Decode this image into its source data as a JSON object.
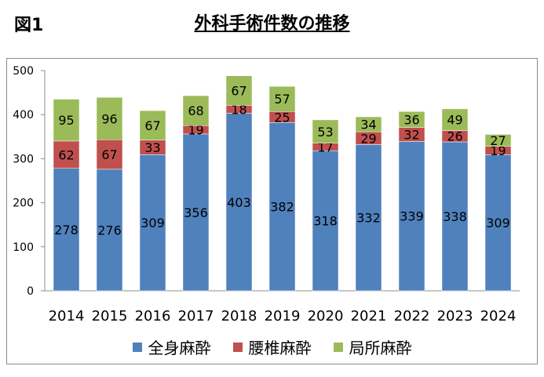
{
  "figure_label": "図1",
  "chart_data": {
    "type": "bar",
    "stacked": true,
    "title": "外科手術件数の推移",
    "xlabel": "",
    "ylabel": "",
    "categories": [
      "2014",
      "2015",
      "2016",
      "2017",
      "2018",
      "2019",
      "2020",
      "2021",
      "2022",
      "2023",
      "2024"
    ],
    "series": [
      {
        "name": "全身麻酔",
        "color": "#4f81bd",
        "values": [
          278,
          276,
          309,
          356,
          403,
          382,
          318,
          332,
          339,
          338,
          309
        ]
      },
      {
        "name": "腰椎麻酔",
        "color": "#c0504d",
        "values": [
          62,
          67,
          33,
          19,
          18,
          25,
          17,
          29,
          32,
          26,
          19
        ]
      },
      {
        "name": "局所麻酔",
        "color": "#9bbb59",
        "values": [
          95,
          96,
          67,
          68,
          67,
          57,
          53,
          34,
          36,
          49,
          27
        ]
      }
    ],
    "ylim": [
      0,
      500
    ],
    "yticks": [
      0,
      100,
      200,
      300,
      400,
      500
    ],
    "grid": false,
    "legend_position": "bottom",
    "data_labels": true
  }
}
